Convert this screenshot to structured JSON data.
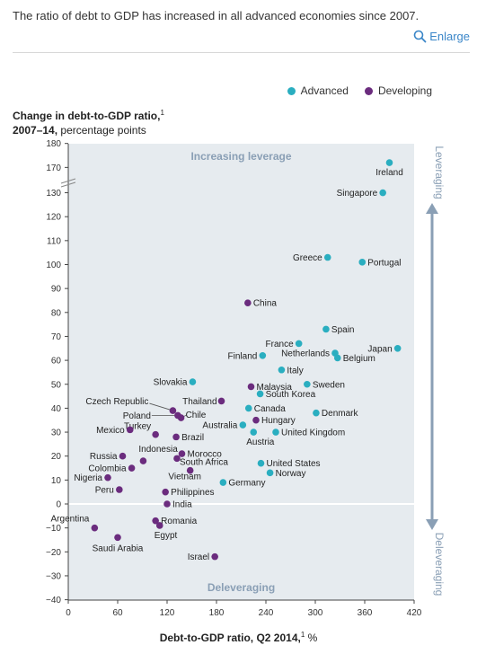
{
  "caption": "The ratio of debt to GDP has increased in all advanced economies since 2007.",
  "enlarge_label": "Enlarge",
  "colors": {
    "advanced": "#2aaec0",
    "developing": "#6b2c7e",
    "link": "#3a86c8",
    "band": "#e6ebef",
    "zone_label": "#8a9fb5"
  },
  "chart_data": {
    "type": "scatter",
    "title": "Change in debt-to-GDP ratio,",
    "title_sup": "1",
    "subtitle_bold": "2007–14,",
    "subtitle_rest": "percentage points",
    "xlabel_bold": "Debt-to-GDP ratio, Q2 2014,",
    "xlabel_sup": "1",
    "xlabel_unit": "%",
    "xlim": [
      0,
      420
    ],
    "ylim": [
      -40,
      180
    ],
    "axis_break": [
      130,
      170
    ],
    "x_ticks": [
      "0",
      "60",
      "120",
      "180",
      "240",
      "300",
      "360",
      "420"
    ],
    "y_ticks": [
      "180",
      "170",
      "130",
      "120",
      "110",
      "100",
      "90",
      "80",
      "70",
      "60",
      "50",
      "40",
      "30",
      "20",
      "10",
      "0",
      "−10",
      "−20",
      "−30",
      "−40"
    ],
    "zones": {
      "top": "Increasing leverage",
      "bottom": "Deleveraging"
    },
    "side_labels": {
      "top": "Leveraging",
      "bottom": "Deleveraging"
    },
    "legend": [
      "Advanced",
      "Developing"
    ],
    "series": [
      {
        "name": "Advanced",
        "points": [
          {
            "label": "Ireland",
            "x": 390,
            "y": 172
          },
          {
            "label": "Singapore",
            "x": 382,
            "y": 130
          },
          {
            "label": "Greece",
            "x": 315,
            "y": 103
          },
          {
            "label": "Portugal",
            "x": 357,
            "y": 101
          },
          {
            "label": "Spain",
            "x": 313,
            "y": 73
          },
          {
            "label": "Japan",
            "x": 400,
            "y": 65
          },
          {
            "label": "France",
            "x": 280,
            "y": 67
          },
          {
            "label": "Netherlands",
            "x": 324,
            "y": 63
          },
          {
            "label": "Belgium",
            "x": 327,
            "y": 61
          },
          {
            "label": "Finland",
            "x": 236,
            "y": 62
          },
          {
            "label": "Italy",
            "x": 259,
            "y": 56
          },
          {
            "label": "Sweden",
            "x": 290,
            "y": 50
          },
          {
            "label": "Slovakia",
            "x": 151,
            "y": 51
          },
          {
            "label": "South Korea",
            "x": 233,
            "y": 46
          },
          {
            "label": "Canada",
            "x": 219,
            "y": 40
          },
          {
            "label": "Denmark",
            "x": 301,
            "y": 38
          },
          {
            "label": "Australia",
            "x": 212,
            "y": 33
          },
          {
            "label": "Austria",
            "x": 225,
            "y": 30
          },
          {
            "label": "United Kingdom",
            "x": 252,
            "y": 30
          },
          {
            "label": "United States",
            "x": 234,
            "y": 17
          },
          {
            "label": "Norway",
            "x": 245,
            "y": 13
          },
          {
            "label": "Germany",
            "x": 188,
            "y": 9
          }
        ]
      },
      {
        "name": "Developing",
        "points": [
          {
            "label": "China",
            "x": 218,
            "y": 84
          },
          {
            "label": "Malaysia",
            "x": 222,
            "y": 49
          },
          {
            "label": "Thailand",
            "x": 186,
            "y": 43
          },
          {
            "label": "Czech Republic",
            "x": 127,
            "y": 39
          },
          {
            "label": "Poland",
            "x": 133,
            "y": 37
          },
          {
            "label": "Chile",
            "x": 137,
            "y": 36
          },
          {
            "label": "Hungary",
            "x": 228,
            "y": 35
          },
          {
            "label": "Turkey",
            "x": 106,
            "y": 29
          },
          {
            "label": "Mexico",
            "x": 75,
            "y": 31
          },
          {
            "label": "Brazil",
            "x": 131,
            "y": 28
          },
          {
            "label": "Russia",
            "x": 66,
            "y": 20
          },
          {
            "label": "Indonesia",
            "x": 91,
            "y": 18
          },
          {
            "label": "Morocco",
            "x": 138,
            "y": 21
          },
          {
            "label": "South Africa",
            "x": 132,
            "y": 19
          },
          {
            "label": "Colombia",
            "x": 77,
            "y": 15
          },
          {
            "label": "Vietnam",
            "x": 148,
            "y": 14
          },
          {
            "label": "Nigeria",
            "x": 48,
            "y": 11
          },
          {
            "label": "Peru",
            "x": 62,
            "y": 6
          },
          {
            "label": "Philippines",
            "x": 118,
            "y": 5
          },
          {
            "label": "India",
            "x": 120,
            "y": 0
          },
          {
            "label": "Argentina",
            "x": 32,
            "y": -10
          },
          {
            "label": "Romania",
            "x": 106,
            "y": -7
          },
          {
            "label": "Egypt",
            "x": 111,
            "y": -9
          },
          {
            "label": "Saudi Arabia",
            "x": 60,
            "y": -14
          },
          {
            "label": "Israel",
            "x": 178,
            "y": -22
          }
        ]
      }
    ]
  }
}
